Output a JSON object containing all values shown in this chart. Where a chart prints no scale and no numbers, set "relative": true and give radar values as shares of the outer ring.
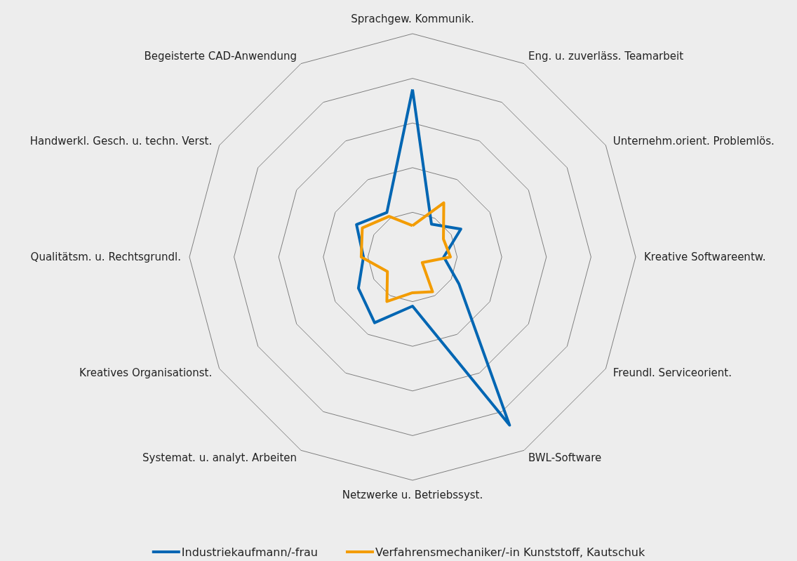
{
  "chart_data": {
    "type": "radar",
    "relative": true,
    "grid": true,
    "legend": "bottom",
    "categories": [
      "Sprachgew. Kommunik.",
      "Eng. u. zuverläss. Teamarbeit",
      "Unternehm.orient. Problemlös.",
      "Kreative Softwareentw.",
      "Freundl. Serviceorient.",
      "BWL-Software",
      "Netzwerke u. Betriebssyst.",
      "Systemat. u. analyt. Arbeiten",
      "Kreatives Organisationst.",
      "Qualitätsm. u. Rechtsgrundl.",
      "Handwerkl. Gesch. u. techn. Verst.",
      "Begeisterte CAD-Anwendung"
    ],
    "series": [
      {
        "name": "Industriekaufmann/-frau",
        "color": "#0066b3",
        "values": [
          0.75,
          0.17,
          0.25,
          0.14,
          0.24,
          0.87,
          0.22,
          0.34,
          0.28,
          0.22,
          0.29,
          0.23
        ]
      },
      {
        "name": "Verfahrensmechaniker/-in Kunststoff, Kautschuk",
        "color": "#f39c00",
        "values": [
          0.14,
          0.28,
          0.16,
          0.17,
          0.05,
          0.18,
          0.16,
          0.23,
          0.13,
          0.23,
          0.26,
          0.21
        ]
      }
    ]
  }
}
